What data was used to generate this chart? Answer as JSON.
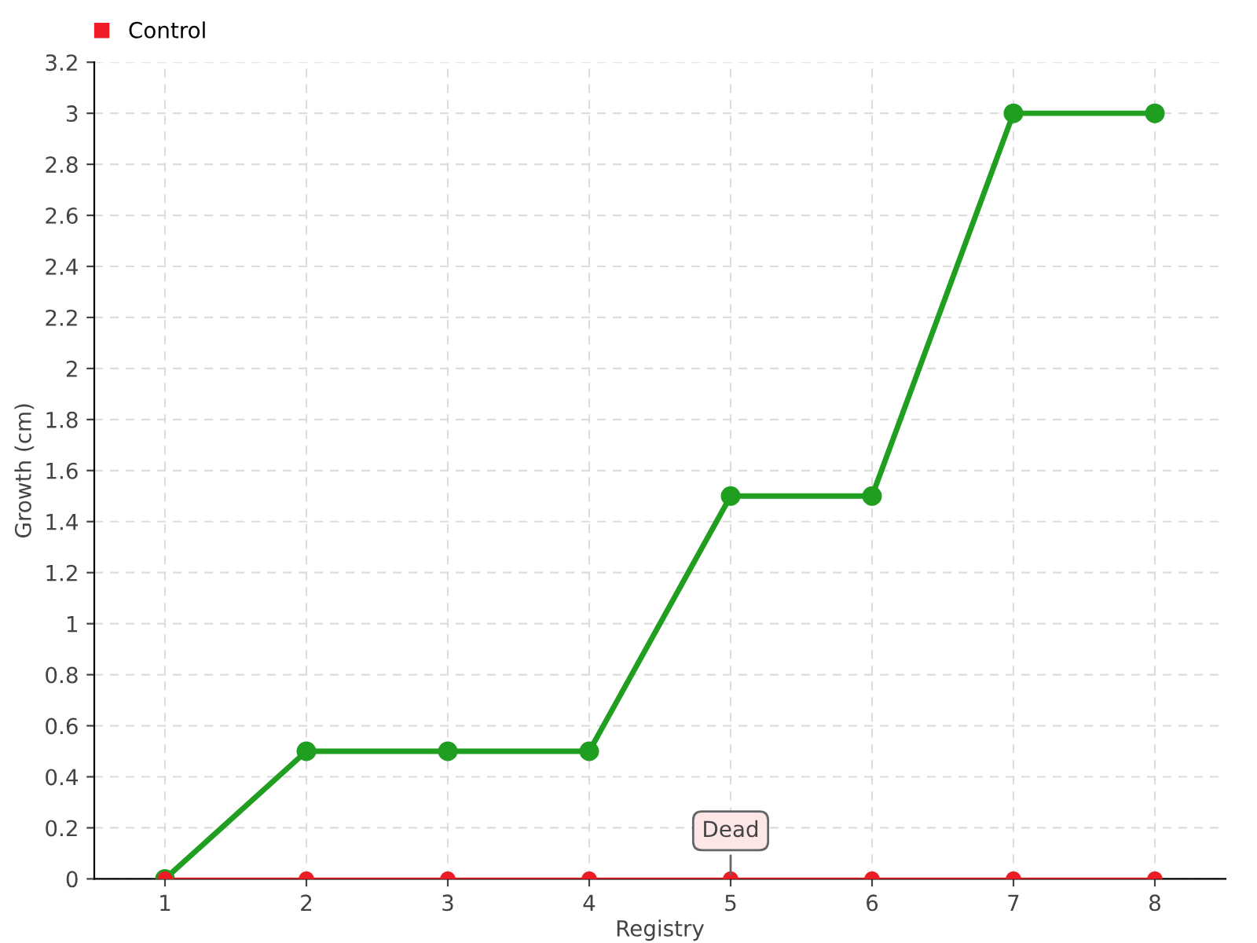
{
  "chart_data": {
    "type": "line",
    "xlabel": "Registry",
    "ylabel": "Growth (cm)",
    "categories": [
      "1",
      "2",
      "3",
      "4",
      "5",
      "6",
      "7",
      "8"
    ],
    "series": [
      {
        "color": "#1f9e1f",
        "values": [
          0,
          0.5,
          0.5,
          0.5,
          1.5,
          1.5,
          3,
          3
        ]
      },
      {
        "name": "Control",
        "color": "#ee1c25",
        "values": [
          0,
          0,
          0,
          0,
          0,
          0,
          0,
          0
        ]
      }
    ],
    "ylim": [
      0,
      3.2
    ],
    "yticks": [
      0,
      0.2,
      0.4,
      0.6,
      0.8,
      1,
      1.2,
      1.4,
      1.6,
      1.8,
      2,
      2.2,
      2.4,
      2.6,
      2.8,
      3,
      3.2
    ],
    "grid": true,
    "legend": "top left",
    "marker": "circle",
    "line_style": "solid",
    "annotations": [
      {
        "text": "Dead",
        "x": "5",
        "y": 0
      }
    ]
  }
}
